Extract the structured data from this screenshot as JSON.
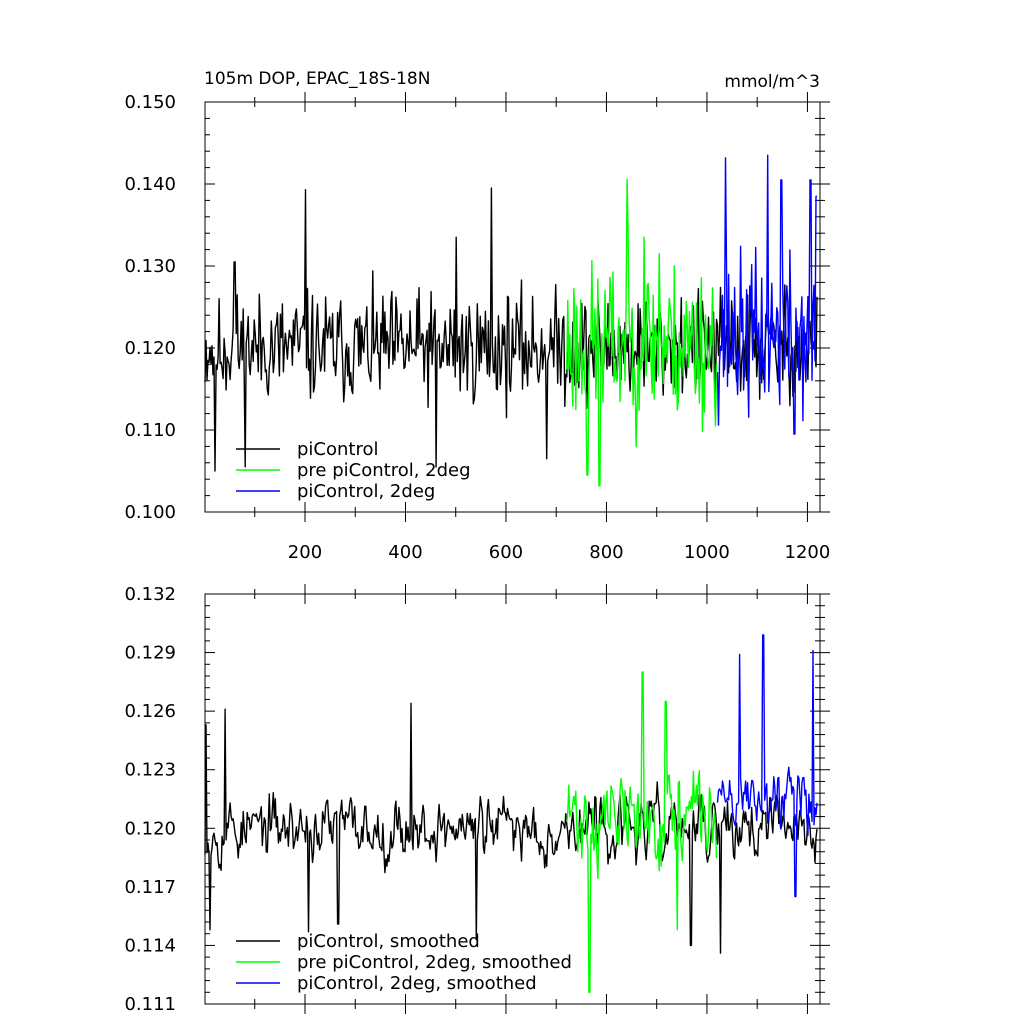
{
  "chart_data": [
    {
      "type": "line",
      "title_left": "105m DOP, EPAC_18S-18N",
      "title_right": "mmol/m^3",
      "xlim": [
        1,
        1225
      ],
      "ylim": [
        0.1,
        0.15
      ],
      "xticks": [
        200,
        400,
        600,
        800,
        1000,
        1200
      ],
      "xtick_labels": [
        "200",
        "400",
        "600",
        "800",
        "1000",
        "1200"
      ],
      "yticks": [
        0.1,
        0.11,
        0.12,
        0.13,
        0.14,
        0.15
      ],
      "ytick_labels": [
        "0.100",
        "0.110",
        "0.120",
        "0.130",
        "0.140",
        "0.150"
      ],
      "legend": [
        {
          "label": "piControl",
          "color": "#000000"
        },
        {
          "label": "pre piControl, 2deg",
          "color": "#00ff00"
        },
        {
          "label": "piControl, 2deg",
          "color": "#0000ff"
        }
      ],
      "series": [
        {
          "name": "piControl",
          "color": "#000000",
          "x_start": 1,
          "x_end": 1220,
          "mean": 0.12,
          "amplitude": 0.0058,
          "seed": 11,
          "peaks": [
            [
              21,
              0.105
            ],
            [
              60,
              0.1305
            ],
            [
              81,
              0.1055
            ],
            [
              201,
              0.1393
            ],
            [
              461,
              0.1055
            ],
            [
              501,
              0.1335
            ],
            [
              571,
              0.1395
            ],
            [
              681,
              0.1065
            ]
          ]
        },
        {
          "name": "pre piControl, 2deg",
          "color": "#00ff00",
          "x_start": 721,
          "x_end": 1020,
          "mean": 0.1205,
          "amplitude": 0.0085,
          "seed": 23,
          "peaks": [
            [
              762,
              0.1045
            ],
            [
              786,
              0.1032
            ],
            [
              841,
              0.1406
            ],
            [
              875,
              0.1335
            ],
            [
              905,
              0.1315
            ]
          ]
        },
        {
          "name": "piControl, 2deg",
          "color": "#0000ff",
          "x_start": 1021,
          "x_end": 1220,
          "mean": 0.1215,
          "amplitude": 0.0085,
          "seed": 37,
          "peaks": [
            [
              1037,
              0.1432
            ],
            [
              1121,
              0.1435
            ],
            [
              1148,
              0.1405
            ],
            [
              1174,
              0.1095
            ],
            [
              1206,
              0.1405
            ],
            [
              1218,
              0.1385
            ]
          ]
        }
      ]
    },
    {
      "type": "line",
      "xlim": [
        1,
        1225
      ],
      "ylim": [
        0.111,
        0.132
      ],
      "yticks": [
        0.111,
        0.114,
        0.117,
        0.12,
        0.123,
        0.126,
        0.129,
        0.132
      ],
      "ytick_labels": [
        "0.111",
        "0.114",
        "0.117",
        "0.120",
        "0.123",
        "0.126",
        "0.129",
        "0.132"
      ],
      "legend": [
        {
          "label": "piControl, smoothed",
          "color": "#000000"
        },
        {
          "label": "pre piControl, 2deg, smoothed",
          "color": "#00ff00"
        },
        {
          "label": "piControl, 2deg, smoothed",
          "color": "#0000ff"
        }
      ],
      "series": [
        {
          "name": "piControl, smoothed",
          "color": "#000000",
          "x_start": 1,
          "x_end": 1220,
          "mean": 0.12,
          "amplitude": 0.0022,
          "seed": 53,
          "peaks": [
            [
              3,
              0.1253
            ],
            [
              11,
              0.1148
            ],
            [
              41,
              0.1261
            ],
            [
              207,
              0.1147
            ],
            [
              266,
              0.1151
            ],
            [
              411,
              0.1264
            ],
            [
              541,
              0.1143
            ],
            [
              968,
              0.114
            ],
            [
              1027,
              0.1136
            ]
          ]
        },
        {
          "name": "pre piControl, 2deg, smoothed",
          "color": "#00ff00",
          "x_start": 721,
          "x_end": 1020,
          "mean": 0.1205,
          "amplitude": 0.0034,
          "seed": 71,
          "peaks": [
            [
              766,
              0.1116
            ],
            [
              872,
              0.128
            ],
            [
              918,
              0.1265
            ],
            [
              941,
              0.1148
            ]
          ]
        },
        {
          "name": "piControl, 2deg, smoothed",
          "color": "#0000ff",
          "x_start": 1021,
          "x_end": 1220,
          "mean": 0.1215,
          "amplitude": 0.0027,
          "seed": 89,
          "peaks": [
            [
              1065,
              0.1289
            ],
            [
              1112,
              0.1299
            ],
            [
              1176,
              0.1165
            ],
            [
              1211,
              0.1291
            ]
          ]
        }
      ]
    }
  ]
}
